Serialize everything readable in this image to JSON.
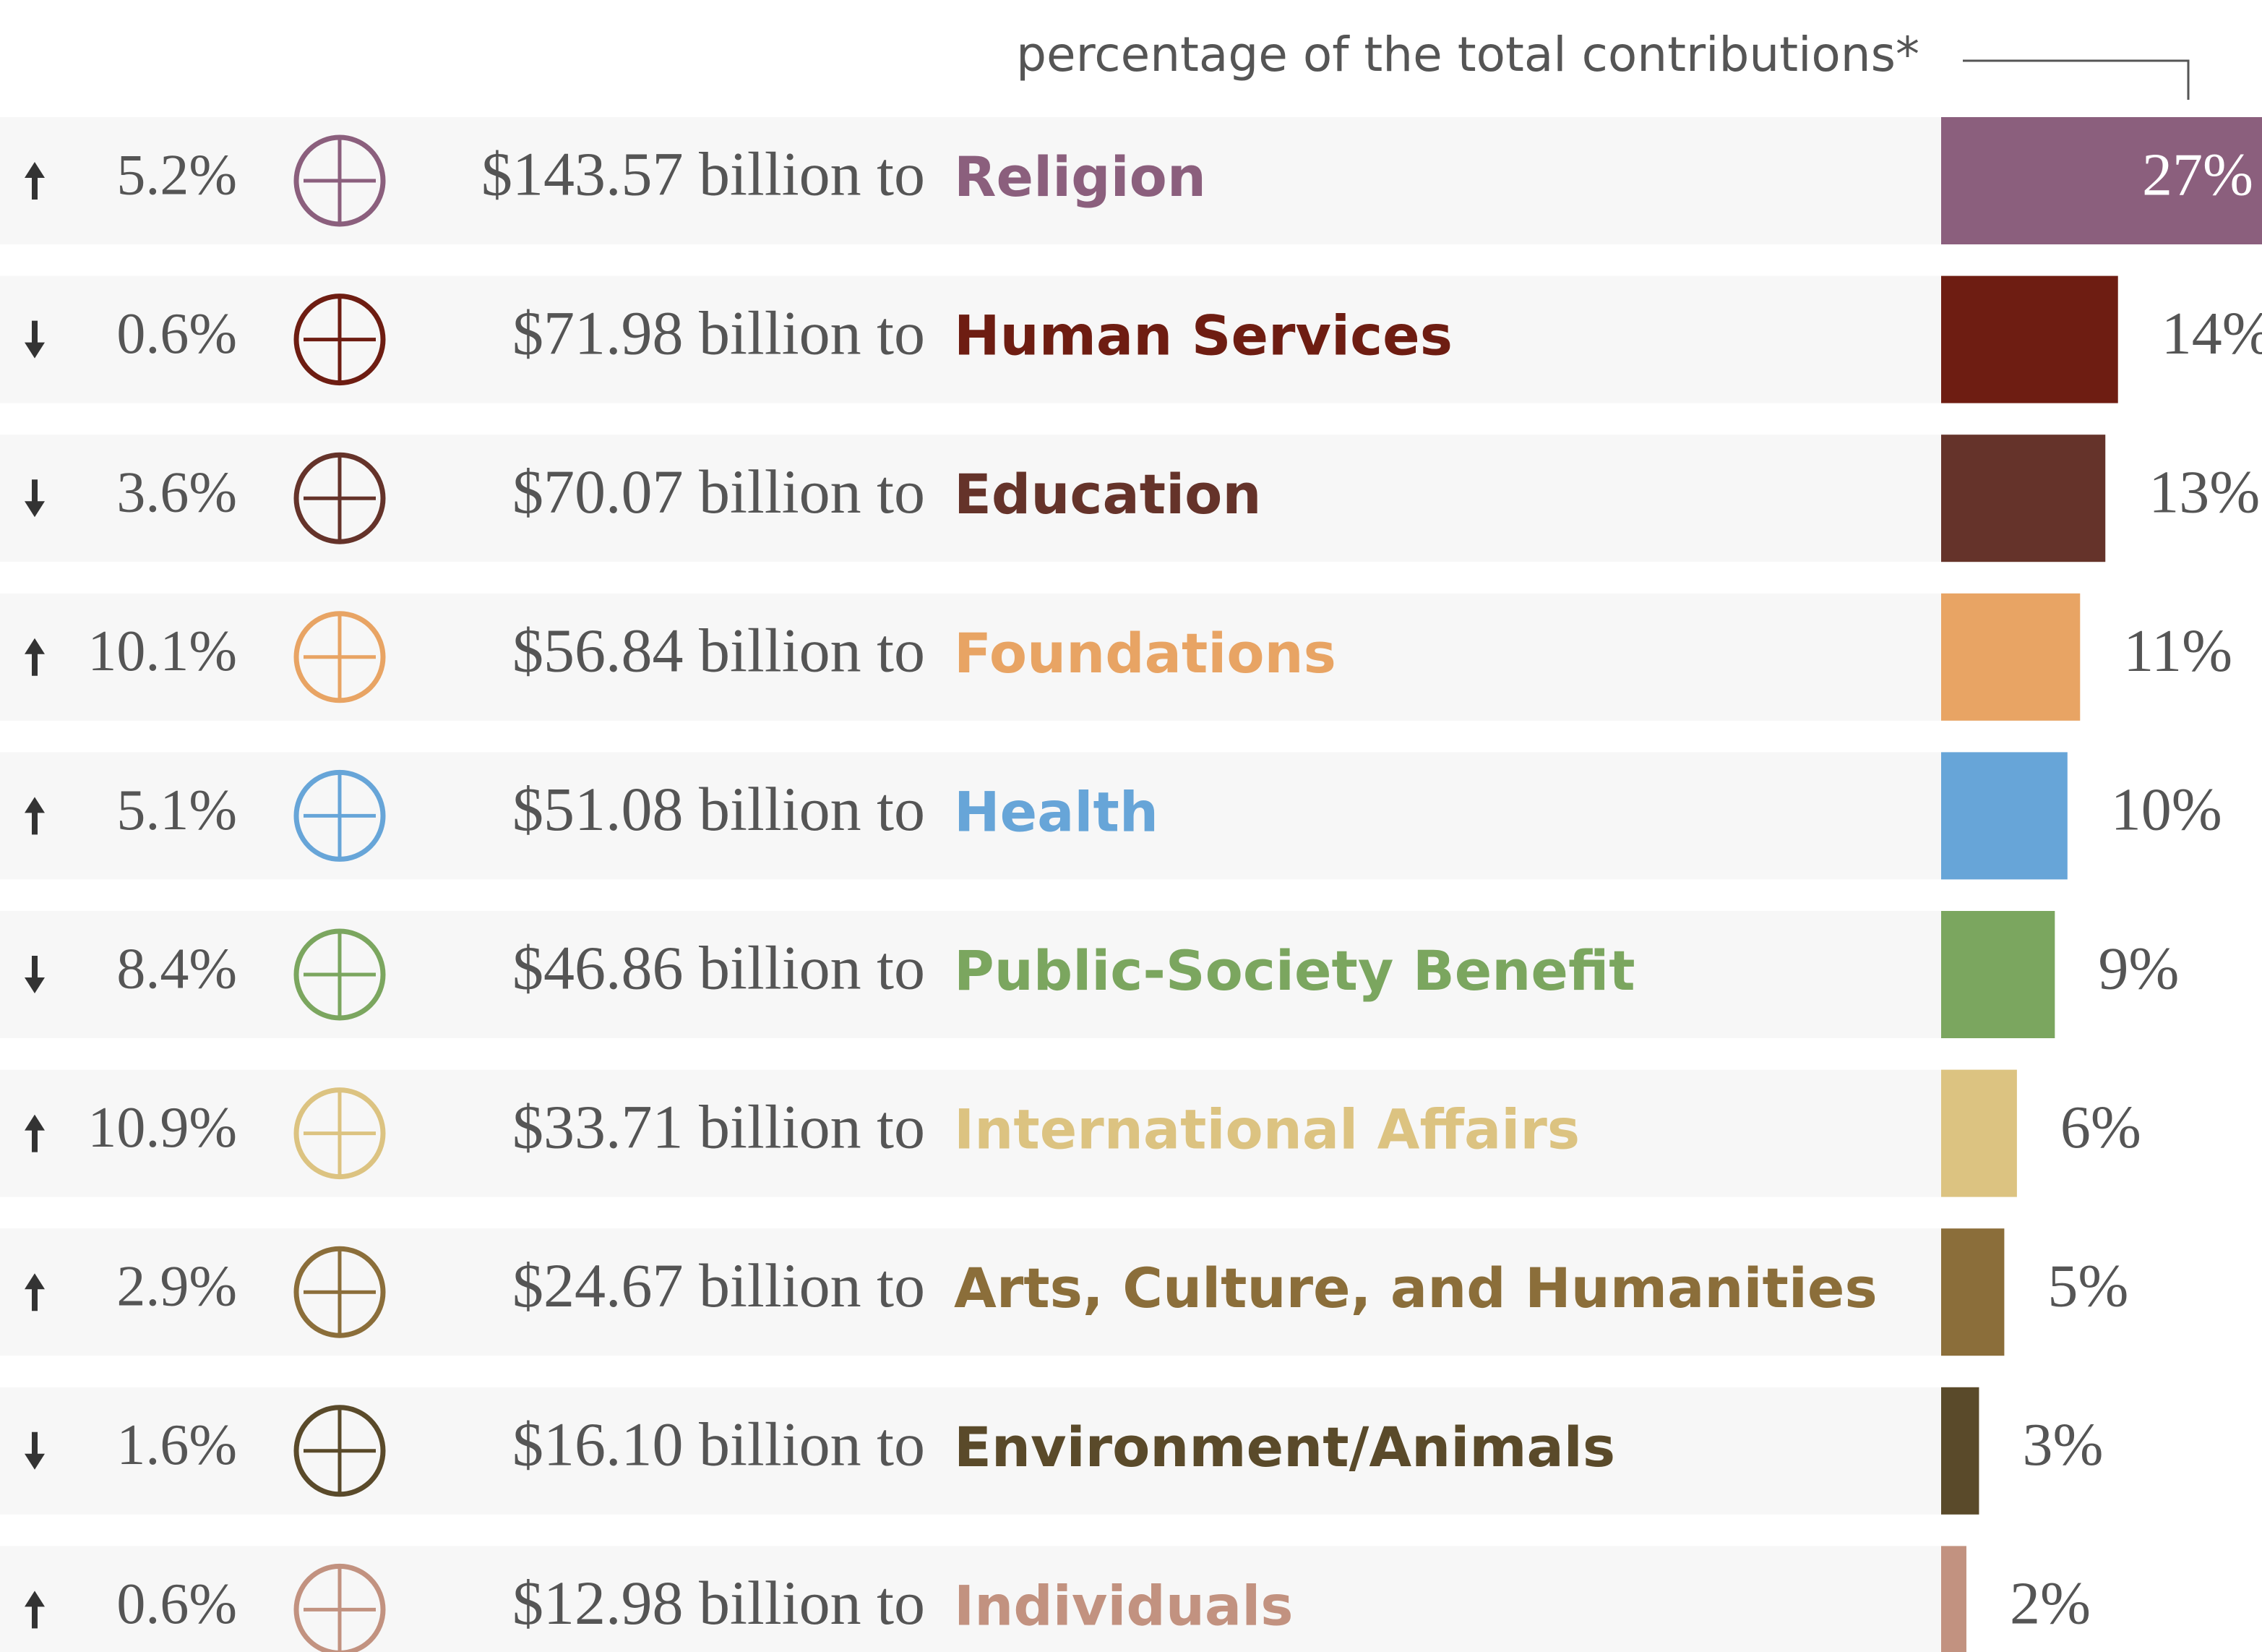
{
  "chart_data": {
    "type": "bar",
    "title": "percentage of the total contributions*",
    "categories": [
      "Religion",
      "Human Services",
      "Education",
      "Foundations",
      "Health",
      "Public-Society Benefit",
      "International Affairs",
      "Arts, Culture, and Humanities",
      "Environment/Animals",
      "Individuals"
    ],
    "values": [
      27,
      14,
      13,
      11,
      10,
      9,
      6,
      5,
      3,
      2
    ],
    "value_labels": [
      "27%",
      "14%",
      "13%",
      "11%",
      "10%",
      "9%",
      "6%",
      "5%",
      "3%",
      "2%"
    ],
    "colors": [
      "#8b5f7d",
      "#6e1d12",
      "#65332a",
      "#e8a464",
      "#67a5d8",
      "#7ba65f",
      "#dcc381",
      "#8b6e3a",
      "#5a4a2a",
      "#c29280"
    ],
    "change_labels": [
      "5.2%",
      "0.6%",
      "3.6%",
      "10.1%",
      "5.1%",
      "8.4%",
      "10.9%",
      "2.9%",
      "1.6%",
      "0.6%"
    ],
    "directions": [
      "up",
      "down",
      "down",
      "up",
      "up",
      "down",
      "up",
      "up",
      "down",
      "up"
    ],
    "amount_labels": [
      "$143.57 billion to",
      "$71.98 billion to",
      "$70.07 billion to",
      "$56.84 billion to",
      "$51.08 billion to",
      "$46.86 billion to",
      "$33.71 billion to",
      "$24.67 billion to",
      "$16.10 billion to",
      "$12.98 billion to"
    ],
    "xlim": [
      0,
      25.4
    ]
  }
}
